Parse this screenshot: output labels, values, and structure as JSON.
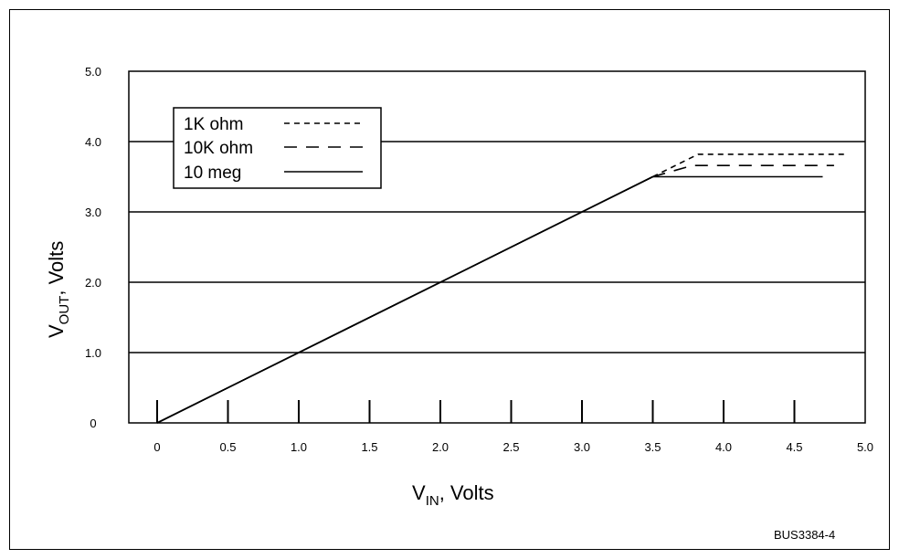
{
  "chart_data": {
    "type": "line",
    "xlabel_main": "V",
    "xlabel_sub": "IN",
    "xlabel_rest": ", Volts",
    "ylabel_main": "V",
    "ylabel_sub": "OUT",
    "ylabel_rest": ", Volts",
    "xlim": [
      -0.2,
      5.0
    ],
    "ylim": [
      0,
      5.0
    ],
    "x_tick_labels": [
      "0",
      "0.5",
      "1.0",
      "1.5",
      "2.0",
      "2.5",
      "3.0",
      "3.5",
      "4.0",
      "4.5",
      "5.0"
    ],
    "x_tick_values": [
      0,
      0.5,
      1.0,
      1.5,
      2.0,
      2.5,
      3.0,
      3.5,
      4.0,
      4.5,
      5.0
    ],
    "x_tick_marks": [
      0,
      0.5,
      1.0,
      1.5,
      2.0,
      2.5,
      3.0,
      3.5,
      4.0,
      4.5
    ],
    "y_tick_labels": [
      "0",
      "1.0",
      "2.0",
      "3.0",
      "4.0",
      "5.0"
    ],
    "y_tick_values": [
      0,
      1.0,
      2.0,
      3.0,
      4.0,
      5.0
    ],
    "gridlines_y": [
      1.0,
      2.0,
      3.0,
      4.0
    ],
    "grid": "horizontal",
    "legend_position": "top-left",
    "series": [
      {
        "name": "1K ohm",
        "style": "short-dash",
        "x": [
          0,
          3.5,
          3.82,
          4.88
        ],
        "y": [
          0,
          3.5,
          3.82,
          3.82
        ]
      },
      {
        "name": "10K ohm",
        "style": "long-dash",
        "x": [
          0,
          3.5,
          3.78,
          4.78
        ],
        "y": [
          0,
          3.5,
          3.66,
          3.66
        ]
      },
      {
        "name": "10 meg",
        "style": "solid",
        "x": [
          0,
          3.5,
          3.5,
          4.7
        ],
        "y": [
          0,
          3.5,
          3.5,
          3.5
        ]
      }
    ],
    "figure_id": "BUS3384-4",
    "colors": {
      "line": "#000000",
      "background": "#ffffff"
    }
  }
}
